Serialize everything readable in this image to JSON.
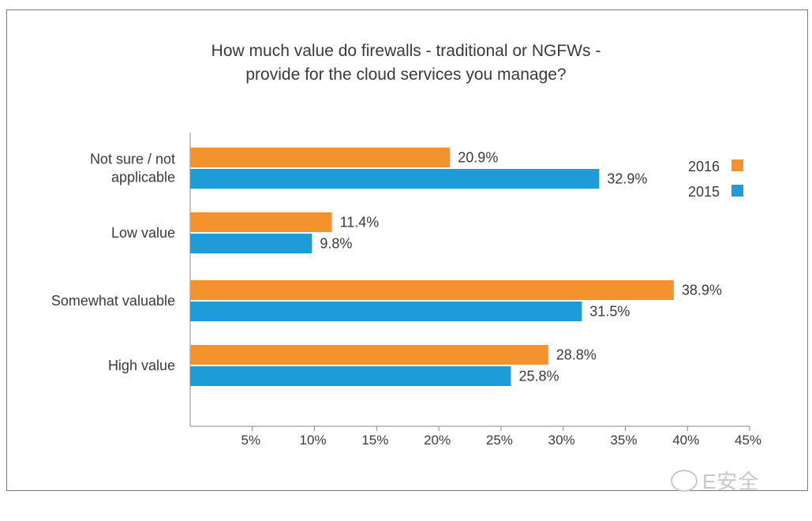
{
  "chart_data": {
    "type": "bar",
    "orientation": "horizontal",
    "title_lines": [
      "How much value do firewalls - traditional or NGFWs -",
      "provide for the cloud services you manage?"
    ],
    "categories": [
      "Not sure / not applicable",
      "Low value",
      "Somewhat valuable",
      "High value"
    ],
    "category_lines": [
      [
        "Not sure / not",
        "applicable"
      ],
      [
        "Low value"
      ],
      [
        "Somewhat valuable"
      ],
      [
        "High value"
      ]
    ],
    "series": [
      {
        "name": "2016",
        "color": "#f4922e",
        "values": [
          20.9,
          11.4,
          38.9,
          28.8
        ],
        "labels": [
          "20.9%",
          "11.4%",
          "38.9%",
          "28.8%"
        ]
      },
      {
        "name": "2015",
        "color": "#1e9cd7",
        "values": [
          32.9,
          9.8,
          31.5,
          25.8
        ],
        "labels": [
          "32.9%",
          "9.8%",
          "31.5%",
          "25.8%"
        ]
      }
    ],
    "xlim": [
      0,
      45
    ],
    "xticks": [
      "5%",
      "10%",
      "15%",
      "20%",
      "25%",
      "30%",
      "35%",
      "40%",
      "45%"
    ],
    "xtick_values": [
      5,
      10,
      15,
      20,
      25,
      30,
      35,
      40,
      45
    ],
    "legend_position": "top-right",
    "grid": false
  },
  "watermark": {
    "text": "E安全",
    "icon": "wechat-icon"
  }
}
